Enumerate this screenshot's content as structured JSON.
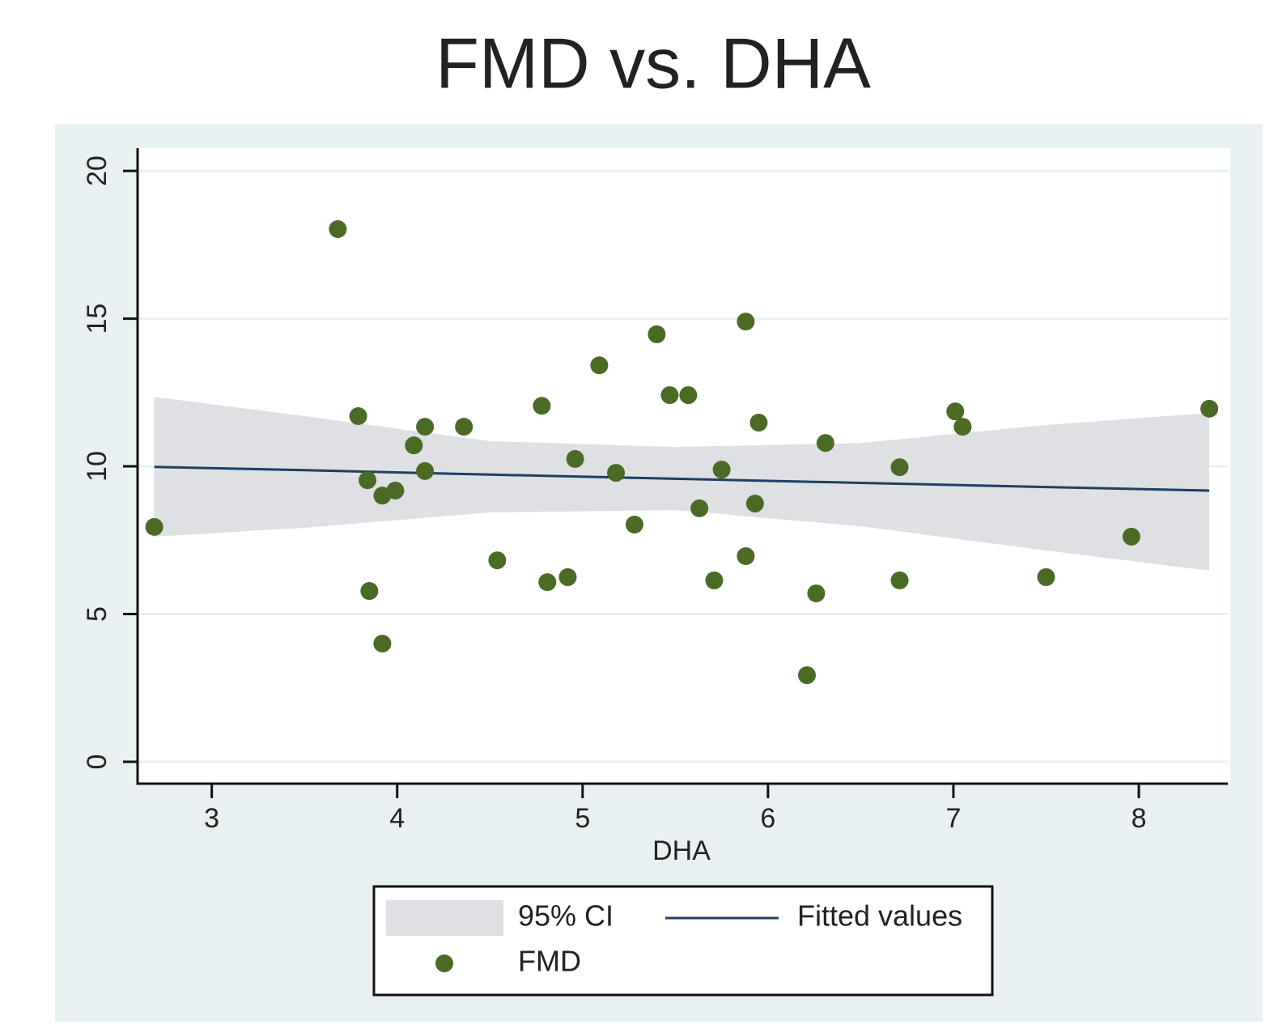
{
  "chart_data": {
    "type": "scatter",
    "title": "FMD vs. DHA",
    "x_label": "DHA",
    "xlim": [
      2.6,
      8.48
    ],
    "xticks": [
      3,
      4,
      5,
      6,
      7,
      8
    ],
    "ylim": [
      -0.74,
      20.77
    ],
    "yticks": [
      0,
      5,
      10,
      15,
      20
    ],
    "grid": true,
    "series": [
      {
        "name": "95% CI",
        "type": "area",
        "color": "#dfe0e3",
        "x": [
          2.69,
          3.5,
          4.5,
          5.5,
          6.5,
          7.5,
          8.38
        ],
        "lower": [
          7.62,
          7.92,
          8.44,
          8.52,
          7.97,
          7.15,
          6.47
        ],
        "upper": [
          12.35,
          11.7,
          10.85,
          10.66,
          10.79,
          11.4,
          11.81
        ]
      },
      {
        "name": "Fitted values",
        "type": "line",
        "color": "#1f3f63",
        "x": [
          2.69,
          3.5,
          4.5,
          5.5,
          6.5,
          7.5,
          8.38
        ],
        "values": [
          9.98,
          9.87,
          9.72,
          9.58,
          9.44,
          9.3,
          9.18
        ]
      },
      {
        "name": "FMD",
        "type": "scatter",
        "color": "#4b6b25",
        "x": [
          2.69,
          3.68,
          3.79,
          3.84,
          3.85,
          3.92,
          3.99,
          3.92,
          4.09,
          4.15,
          4.15,
          4.36,
          4.54,
          4.78,
          4.81,
          4.92,
          4.96,
          5.09,
          5.18,
          5.28,
          5.4,
          5.47,
          5.57,
          5.63,
          5.71,
          5.75,
          5.88,
          5.88,
          5.93,
          5.95,
          6.21,
          6.26,
          6.31,
          6.71,
          6.71,
          7.01,
          7.05,
          7.5,
          7.96,
          8.38
        ],
        "values": [
          7.95,
          18.03,
          11.7,
          9.53,
          5.78,
          9.01,
          9.18,
          4.0,
          10.71,
          11.34,
          9.84,
          11.34,
          6.82,
          12.05,
          6.08,
          6.25,
          10.25,
          13.42,
          9.78,
          8.03,
          14.47,
          12.41,
          12.41,
          8.58,
          6.14,
          9.89,
          14.9,
          6.96,
          8.74,
          11.48,
          2.93,
          5.7,
          10.79,
          9.97,
          6.14,
          11.86,
          11.34,
          6.25,
          7.62,
          11.95
        ]
      }
    ]
  }
}
